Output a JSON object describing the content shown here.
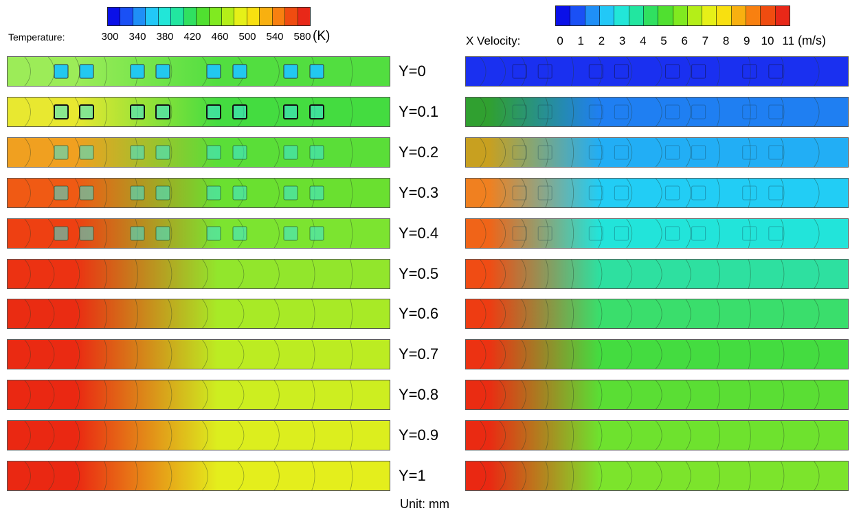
{
  "temperature_legend": {
    "label": "Temperature:",
    "ticks": [
      "300",
      "340",
      "380",
      "420",
      "460",
      "500",
      "540",
      "580"
    ],
    "unit": "(K)",
    "colors": [
      "#0a10e8",
      "#1a50f5",
      "#1f8ff7",
      "#22c8f7",
      "#22e6d8",
      "#22e6a0",
      "#30e060",
      "#50e030",
      "#80ea20",
      "#b4ee18",
      "#e6f018",
      "#f8e010",
      "#f8b010",
      "#f88010",
      "#f04c10",
      "#e82818"
    ]
  },
  "velocity_legend": {
    "label": "X Velocity:",
    "ticks": [
      "0",
      "1",
      "2",
      "3",
      "4",
      "5",
      "6",
      "7",
      "8",
      "9",
      "10",
      "11"
    ],
    "unit": "(m/s)",
    "colors": [
      "#0a10e8",
      "#1a50f5",
      "#1f8ff7",
      "#22c8f7",
      "#22e6d8",
      "#22e6a0",
      "#30e060",
      "#50e030",
      "#80ea20",
      "#b4ee18",
      "#e6f018",
      "#f8e010",
      "#f8b010",
      "#f88010",
      "#f04c10",
      "#e82818"
    ]
  },
  "planes": [
    {
      "label": "Y=0",
      "temp_inlet": "#9cec58",
      "temp_fill": "#52de40",
      "vel_inlet": "#1a30f0",
      "vel_fill": "#1a30f0",
      "blocks": true
    },
    {
      "label": "Y=0.1",
      "temp_inlet": "#e8e830",
      "temp_fill": "#44dc40",
      "vel_inlet": "#30a030",
      "vel_fill": "#1f7ff2",
      "blocks": true
    },
    {
      "label": "Y=0.2",
      "temp_inlet": "#f0a020",
      "temp_fill": "#5ade38",
      "vel_inlet": "#c8a020",
      "vel_fill": "#22aef5",
      "blocks": true
    },
    {
      "label": "Y=0.3",
      "temp_inlet": "#f05a14",
      "temp_fill": "#6ae030",
      "vel_inlet": "#f08020",
      "vel_fill": "#22cdf5",
      "blocks": true
    },
    {
      "label": "Y=0.4",
      "temp_inlet": "#ee4012",
      "temp_fill": "#7ce430",
      "vel_inlet": "#f06418",
      "vel_fill": "#22e4da",
      "blocks": true
    },
    {
      "label": "Y=0.5",
      "temp_inlet": "#ec3212",
      "temp_fill": "#92e62c",
      "vel_inlet": "#f04c14",
      "vel_fill": "#2ee0a0",
      "blocks": false
    },
    {
      "label": "Y=0.6",
      "temp_inlet": "#ea2c12",
      "temp_fill": "#a8ea26",
      "vel_inlet": "#ee3c12",
      "vel_fill": "#3ade6c",
      "blocks": false
    },
    {
      "label": "Y=0.7",
      "temp_inlet": "#ea2a12",
      "temp_fill": "#bcec22",
      "vel_inlet": "#ec3212",
      "vel_fill": "#44dc40",
      "blocks": false
    },
    {
      "label": "Y=0.8",
      "temp_inlet": "#ea2812",
      "temp_fill": "#cdee20",
      "vel_inlet": "#ea2c12",
      "vel_fill": "#5ade34",
      "blocks": false
    },
    {
      "label": "Y=0.9",
      "temp_inlet": "#ea2812",
      "temp_fill": "#dcee1e",
      "vel_inlet": "#ea2a12",
      "vel_fill": "#6ee22e",
      "blocks": false
    },
    {
      "label": "Y=1",
      "temp_inlet": "#ea2812",
      "temp_fill": "#e4ee1c",
      "vel_inlet": "#ea2812",
      "vel_fill": "#7ce42c",
      "blocks": false
    }
  ],
  "footer": "Unit: mm"
}
